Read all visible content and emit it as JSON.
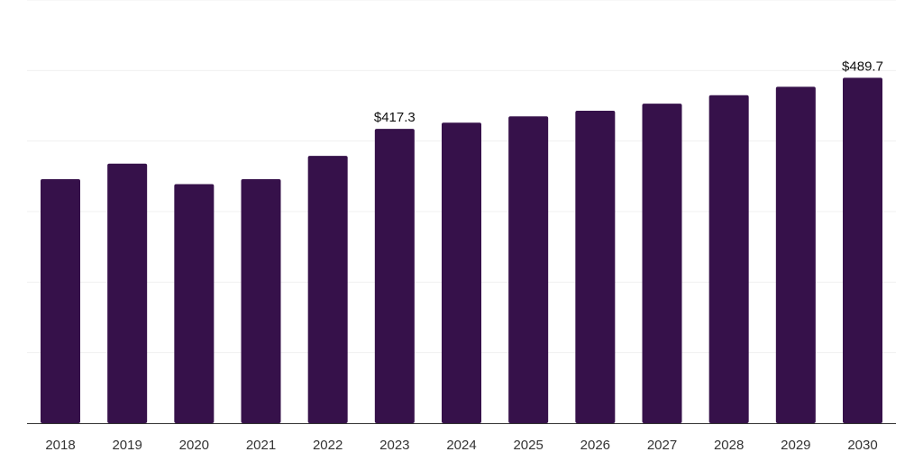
{
  "chart_data": {
    "type": "bar",
    "title": "",
    "xlabel": "",
    "ylabel": "",
    "categories": [
      "2018",
      "2019",
      "2020",
      "2021",
      "2022",
      "2023",
      "2024",
      "2025",
      "2026",
      "2027",
      "2028",
      "2029",
      "2030"
    ],
    "values": [
      346,
      368,
      339,
      346,
      379,
      417.3,
      426,
      435,
      443,
      453,
      465,
      477,
      489.7
    ],
    "data_labels": {
      "2023": "$417.3",
      "2030": "$489.7"
    },
    "ylim": [
      0,
      600
    ],
    "grid": true,
    "legend": "none",
    "colors": {
      "bar": "#36114a",
      "grid": "#f0f0f0",
      "axis": "#333333"
    }
  }
}
